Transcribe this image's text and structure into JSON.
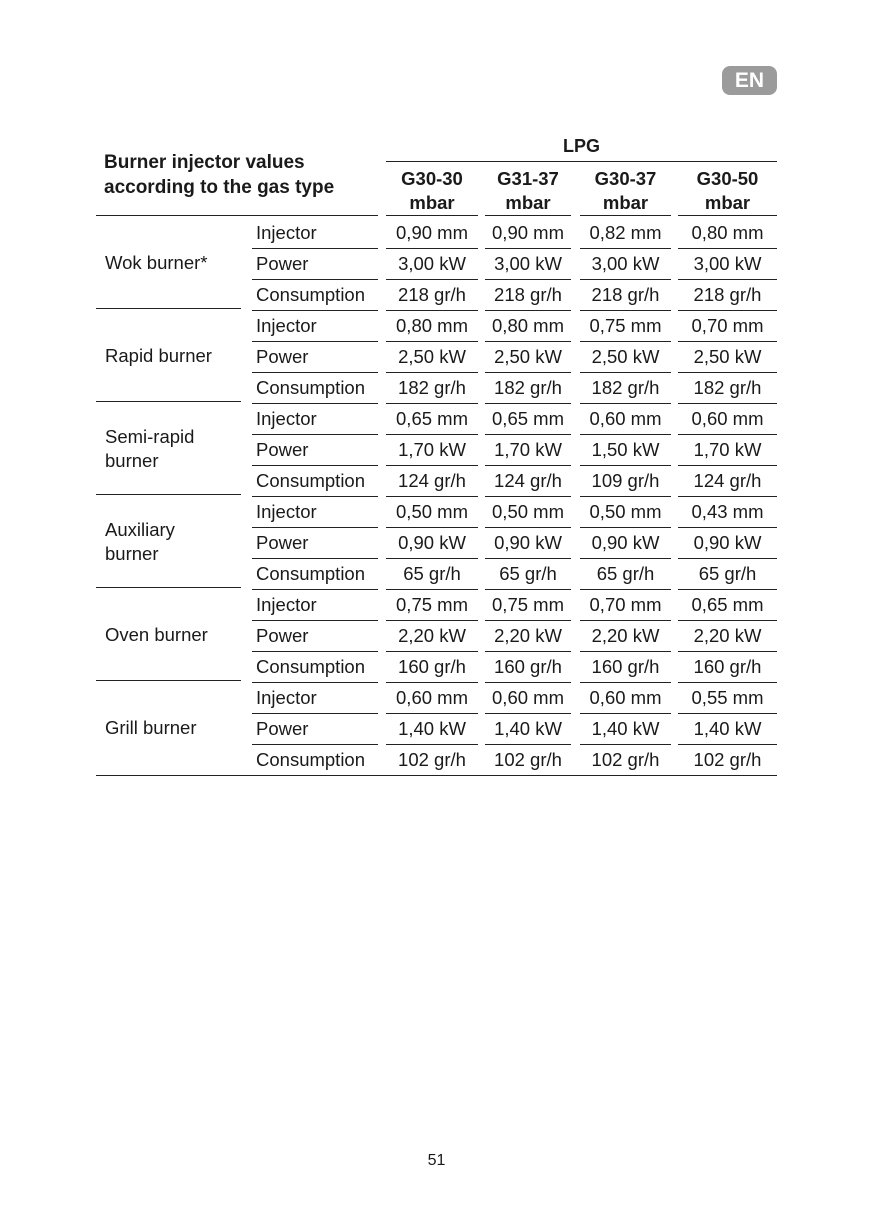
{
  "badge": "EN",
  "title_line1": "Burner injector values",
  "title_line2": "according to the gas type",
  "group_header": "LPG",
  "columns": [
    {
      "l1": "G30-30",
      "l2": "mbar"
    },
    {
      "l1": "G31-37",
      "l2": "mbar"
    },
    {
      "l1": "G30-37",
      "l2": "mbar"
    },
    {
      "l1": "G30-50",
      "l2": "mbar"
    }
  ],
  "burners": [
    {
      "name": "Wok burner*",
      "rows": [
        {
          "param": "Injector",
          "values": [
            "0,90 mm",
            "0,90 mm",
            "0,82 mm",
            "0,80 mm"
          ]
        },
        {
          "param": "Power",
          "values": [
            "3,00 kW",
            "3,00 kW",
            "3,00 kW",
            "3,00 kW"
          ]
        },
        {
          "param": "Consumption",
          "values": [
            "218 gr/h",
            "218 gr/h",
            "218 gr/h",
            "218 gr/h"
          ]
        }
      ]
    },
    {
      "name": "Rapid burner",
      "rows": [
        {
          "param": "Injector",
          "values": [
            "0,80 mm",
            "0,80 mm",
            "0,75 mm",
            "0,70 mm"
          ]
        },
        {
          "param": "Power",
          "values": [
            "2,50 kW",
            "2,50 kW",
            "2,50 kW",
            "2,50 kW"
          ]
        },
        {
          "param": "Consumption",
          "values": [
            "182 gr/h",
            "182 gr/h",
            "182 gr/h",
            "182 gr/h"
          ]
        }
      ]
    },
    {
      "name": "Semi-rapid burner",
      "rows": [
        {
          "param": "Injector",
          "values": [
            "0,65 mm",
            "0,65 mm",
            "0,60 mm",
            "0,60 mm"
          ]
        },
        {
          "param": "Power",
          "values": [
            "1,70 kW",
            "1,70 kW",
            "1,50 kW",
            "1,70 kW"
          ]
        },
        {
          "param": "Consumption",
          "values": [
            "124 gr/h",
            "124 gr/h",
            "109 gr/h",
            "124 gr/h"
          ]
        }
      ]
    },
    {
      "name": "Auxiliary burner",
      "rows": [
        {
          "param": "Injector",
          "values": [
            "0,50 mm",
            "0,50 mm",
            "0,50 mm",
            "0,43 mm"
          ]
        },
        {
          "param": "Power",
          "values": [
            "0,90 kW",
            "0,90 kW",
            "0,90 kW",
            "0,90 kW"
          ]
        },
        {
          "param": "Consumption",
          "values": [
            "65 gr/h",
            "65 gr/h",
            "65 gr/h",
            "65 gr/h"
          ]
        }
      ]
    },
    {
      "name": "Oven burner",
      "rows": [
        {
          "param": "Injector",
          "values": [
            "0,75 mm",
            "0,75 mm",
            "0,70 mm",
            "0,65 mm"
          ]
        },
        {
          "param": "Power",
          "values": [
            "2,20 kW",
            "2,20 kW",
            "2,20 kW",
            "2,20 kW"
          ]
        },
        {
          "param": "Consumption",
          "values": [
            "160 gr/h",
            "160 gr/h",
            "160 gr/h",
            "160 gr/h"
          ]
        }
      ]
    },
    {
      "name": "Grill burner",
      "rows": [
        {
          "param": "Injector",
          "values": [
            "0,60 mm",
            "0,60 mm",
            "0,60 mm",
            "0,55 mm"
          ]
        },
        {
          "param": "Power",
          "values": [
            "1,40 kW",
            "1,40 kW",
            "1,40 kW",
            "1,40 kW"
          ]
        },
        {
          "param": "Consumption",
          "values": [
            "102 gr/h",
            "102 gr/h",
            "102 gr/h",
            "102 gr/h"
          ]
        }
      ]
    }
  ],
  "page_number": "51"
}
